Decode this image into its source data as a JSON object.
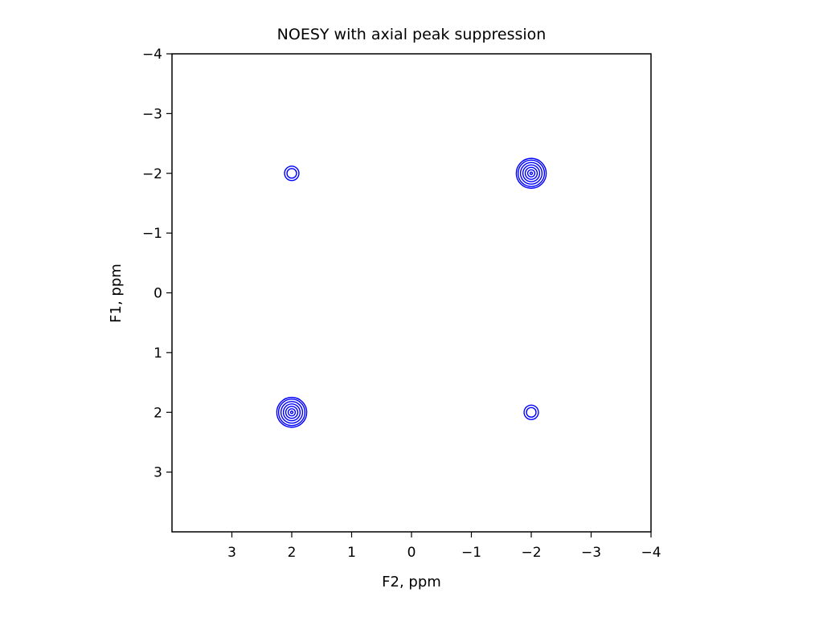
{
  "chart_data": {
    "type": "contour",
    "title": "NOESY with axial peak suppression",
    "xlabel": "F2, ppm",
    "ylabel": "F1, ppm",
    "xlim": [
      4,
      -4
    ],
    "ylim": [
      4,
      -4
    ],
    "x_axis_reversed": true,
    "y_axis_reversed": true,
    "x_ticks": [
      3,
      2,
      1,
      0,
      -1,
      -2,
      -3,
      -4
    ],
    "x_tick_labels": [
      "3",
      "2",
      "1",
      "0",
      "−1",
      "−2",
      "−3",
      "−4"
    ],
    "y_ticks": [
      -4,
      -3,
      -2,
      -1,
      0,
      1,
      2,
      3
    ],
    "y_tick_labels": [
      "−4",
      "−3",
      "−2",
      "−1",
      "0",
      "1",
      "2",
      "3"
    ],
    "grid": false,
    "legend": "none",
    "contour_color": "#0000ff",
    "peaks": [
      {
        "kind": "diagonal",
        "x": 2,
        "y": 2,
        "contour_radii_ppm": [
          0.02,
          0.06,
          0.1,
          0.14,
          0.18,
          0.22,
          0.25
        ]
      },
      {
        "kind": "diagonal",
        "x": -2,
        "y": -2,
        "contour_radii_ppm": [
          0.02,
          0.06,
          0.1,
          0.14,
          0.18,
          0.22,
          0.25
        ]
      },
      {
        "kind": "cross",
        "x": 2,
        "y": -2,
        "contour_radii_ppm": [
          0.08,
          0.12
        ]
      },
      {
        "kind": "cross",
        "x": -2,
        "y": 2,
        "contour_radii_ppm": [
          0.08,
          0.12
        ]
      }
    ]
  }
}
